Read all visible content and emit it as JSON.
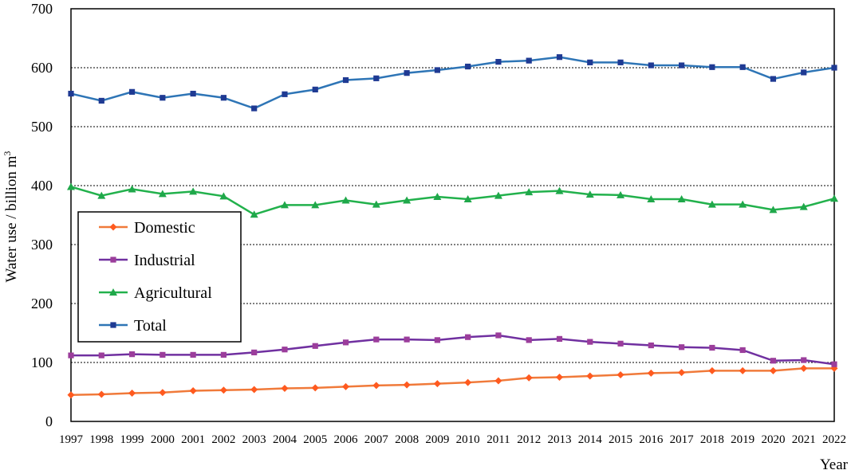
{
  "chart_data": {
    "type": "line",
    "title": "",
    "xlabel": "Year",
    "ylabel": "Water use / billion m",
    "ylabel_superscript": "3",
    "ylim": [
      0,
      700
    ],
    "yticks": [
      0,
      100,
      200,
      300,
      400,
      500,
      600,
      700
    ],
    "grid": "horizontal dotted lines at 100, 200, 300, 400, 500, 600",
    "legend_position": "left-middle",
    "x": [
      "1997",
      "1998",
      "1999",
      "2000",
      "2001",
      "2002",
      "2003",
      "2004",
      "2005",
      "2006",
      "2007",
      "2008",
      "2009",
      "2010",
      "2011",
      "2012",
      "2013",
      "2014",
      "2015",
      "2016",
      "2017",
      "2018",
      "2019",
      "2020",
      "2021",
      "2022"
    ],
    "series": [
      {
        "name": "Domestic",
        "color": "#ff5a1f",
        "line_color": "#f07a3a",
        "marker": "diamond",
        "values": [
          45,
          46,
          48,
          49,
          52,
          53,
          54,
          56,
          57,
          59,
          61,
          62,
          64,
          66,
          69,
          74,
          75,
          77,
          79,
          82,
          83,
          86,
          86,
          86,
          90,
          90
        ]
      },
      {
        "name": "Industrial",
        "color": "#9b3d9b",
        "line_color": "#7030a0",
        "marker": "square",
        "values": [
          112,
          112,
          114,
          113,
          113,
          113,
          117,
          122,
          128,
          134,
          139,
          139,
          138,
          143,
          146,
          138,
          140,
          135,
          132,
          129,
          126,
          125,
          121,
          103,
          104,
          97
        ]
      },
      {
        "name": "Agricultural",
        "color": "#1fa84a",
        "line_color": "#22b14c",
        "marker": "triangle",
        "values": [
          398,
          383,
          394,
          386,
          390,
          382,
          351,
          367,
          367,
          375,
          368,
          375,
          381,
          377,
          383,
          389,
          391,
          385,
          384,
          377,
          377,
          368,
          368,
          359,
          364,
          378
        ]
      },
      {
        "name": "Total",
        "color": "#1f3a93",
        "line_color": "#2e75b6",
        "marker": "square",
        "values": [
          556,
          544,
          559,
          549,
          556,
          549,
          531,
          555,
          563,
          579,
          582,
          591,
          596,
          602,
          610,
          612,
          618,
          609,
          609,
          604,
          604,
          601,
          601,
          581,
          592,
          600
        ]
      }
    ]
  }
}
